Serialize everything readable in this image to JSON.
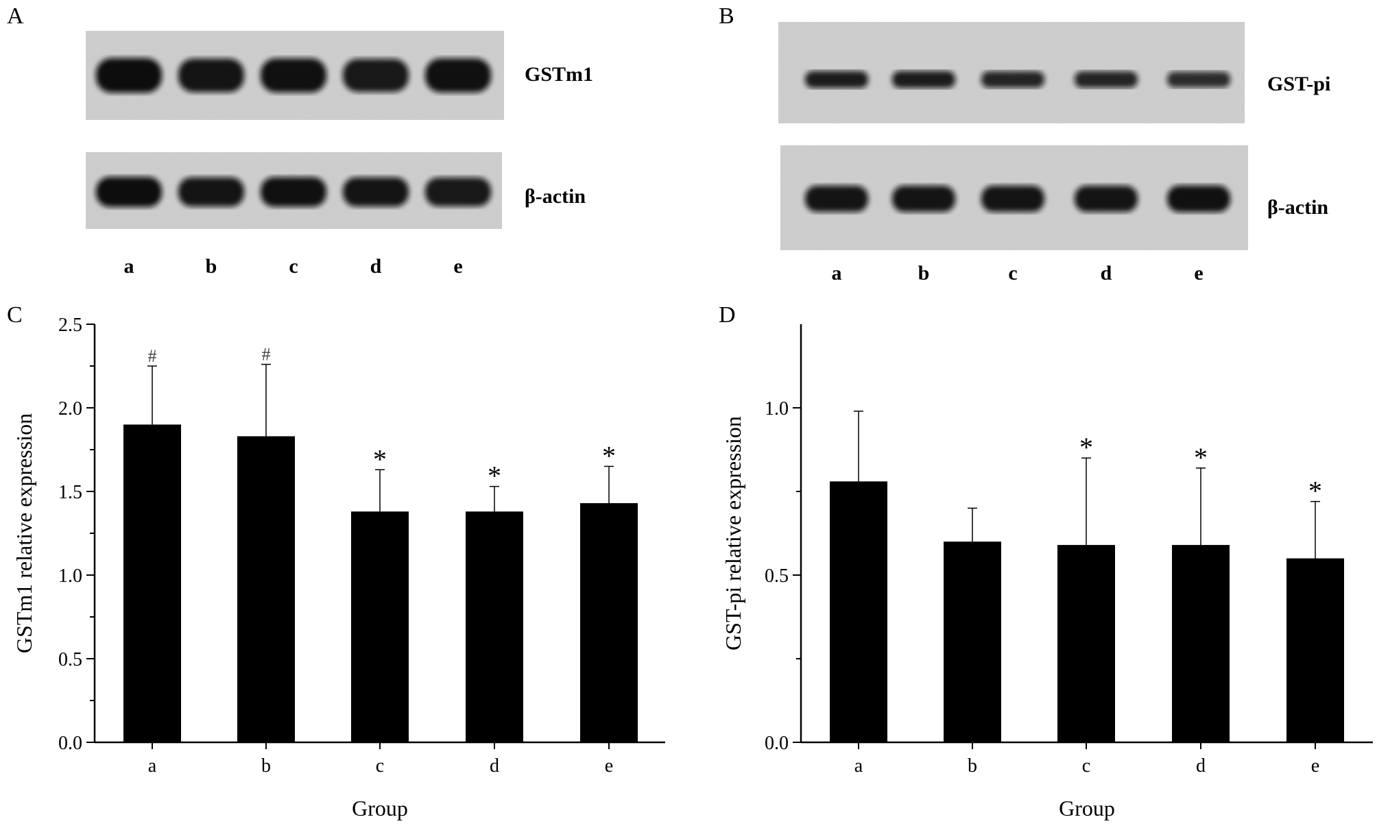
{
  "panels": {
    "A": {
      "letter": "A",
      "lanes": [
        "a",
        "b",
        "c",
        "d",
        "e"
      ],
      "blots": [
        {
          "label": "GSTm1",
          "intensity": [
            1.0,
            0.9,
            0.95,
            0.85,
            0.95
          ]
        },
        {
          "label": "β-actin",
          "intensity": [
            1.0,
            0.9,
            0.95,
            0.9,
            0.85
          ]
        }
      ]
    },
    "B": {
      "letter": "B",
      "lanes": [
        "a",
        "b",
        "c",
        "d",
        "e"
      ],
      "blots": [
        {
          "label": "GST-pi",
          "intensity": [
            0.8,
            0.8,
            0.7,
            0.7,
            0.6
          ]
        },
        {
          "label": "β-actin",
          "intensity": [
            0.9,
            0.9,
            0.9,
            0.9,
            0.95
          ]
        }
      ]
    },
    "C": {
      "letter": "C"
    },
    "D": {
      "letter": "D"
    }
  },
  "chart_data": [
    {
      "type": "bar",
      "panel": "C",
      "categories": [
        "a",
        "b",
        "c",
        "d",
        "e"
      ],
      "values": [
        1.9,
        1.83,
        1.38,
        1.38,
        1.43
      ],
      "errors": [
        0.35,
        0.43,
        0.25,
        0.15,
        0.22
      ],
      "significance": [
        "#",
        "#",
        "*",
        "*",
        "*"
      ],
      "xlabel": "Group",
      "ylabel": "GSTm1 relative expression",
      "ylim": [
        0,
        2.5
      ],
      "yticks": [
        "0.0",
        "0.5",
        "1.0",
        "1.5",
        "2.0",
        "2.5"
      ],
      "bar_color": "#000000",
      "grid": false
    },
    {
      "type": "bar",
      "panel": "D",
      "categories": [
        "a",
        "b",
        "c",
        "d",
        "e"
      ],
      "values": [
        0.78,
        0.6,
        0.59,
        0.59,
        0.55
      ],
      "errors": [
        0.21,
        0.1,
        0.26,
        0.23,
        0.17
      ],
      "significance": [
        "",
        "",
        "*",
        "*",
        "*"
      ],
      "xlabel": "Group",
      "ylabel": "GST-pi relative expression",
      "ylim": [
        0,
        1.25
      ],
      "yticks": [
        "0.0",
        "0.5",
        "1.0"
      ],
      "bar_color": "#000000",
      "grid": false
    }
  ]
}
